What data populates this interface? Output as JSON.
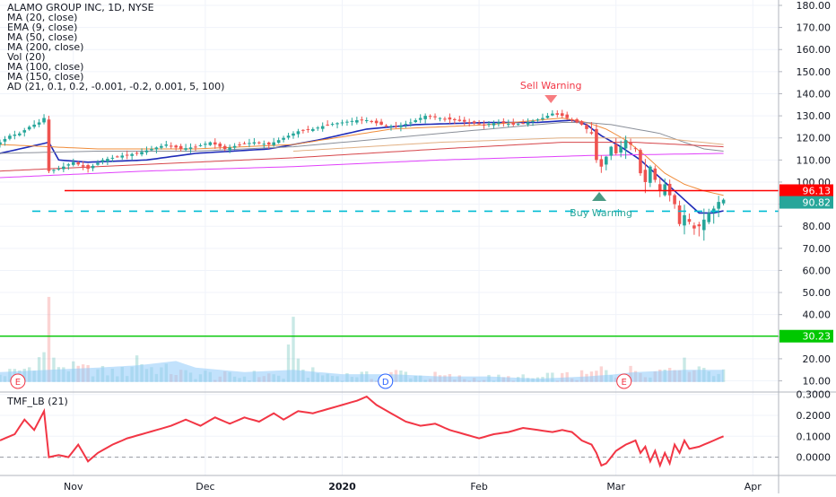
{
  "colors": {
    "up": "#26a69a",
    "down": "#ef5350",
    "ma20": "#1e2bb8",
    "ma50": "#8a8f99",
    "ma100": "#d6454a",
    "ma150": "#e2b083",
    "ma200": "#e040fb",
    "ema9": "#f08c3a",
    "resistance": "#ff0000",
    "support": "#00c800",
    "buy_line": "#00bcd4",
    "volume": "#90caf9",
    "tmf": "#f23645",
    "grid": "#f0f3fa",
    "axis_text": "#131722"
  },
  "legend": {
    "title": "ALAMO GROUP INC, 1D, NYSE",
    "indicators": [
      "MA (20, close)",
      "EMA (9, close)",
      "MA (50, close)",
      "MA (200, close)",
      "Vol (20)",
      "MA (100, close)",
      "MA (150, close)",
      "AD (21, 0.1, 0.2, -0.001, -0.2, 0.001, 5, 100)"
    ]
  },
  "chart_data": [
    {
      "type": "candlestick",
      "title": "ALAMO GROUP INC, 1D, NYSE",
      "x_ticks": [
        "Nov",
        "Dec",
        "2020",
        "Feb",
        "Mar",
        "Apr"
      ],
      "y_ticks": [
        "180.00",
        "170.00",
        "160.00",
        "150.00",
        "140.00",
        "130.00",
        "120.00",
        "110.00",
        "100.00",
        "90.00",
        "80.00",
        "70.00",
        "60.00",
        "50.00",
        "40.00",
        "30.00",
        "20.00",
        "10.00"
      ],
      "ylim": [
        8,
        182
      ],
      "price_labels": [
        {
          "label": "96.13",
          "value": 96.13,
          "color": "#ff0000"
        },
        {
          "label": "90.82",
          "value": 90.82,
          "color": "#26a69a"
        },
        {
          "label": "30.23",
          "value": 30.23,
          "color": "#00c800"
        }
      ],
      "horizontal_lines": [
        {
          "value": 96.13,
          "style": "solid",
          "color": "#ff0000"
        },
        {
          "value": 30.23,
          "style": "solid",
          "color": "#00c800"
        },
        {
          "value": 86.8,
          "style": "dashed",
          "color": "#00bcd4"
        }
      ],
      "annotations": [
        {
          "text": "Sell Warning",
          "near_bar": 116,
          "marker": "down-triangle"
        },
        {
          "text": "Buy Warning",
          "near_bar": 129,
          "marker": "up-triangle"
        }
      ],
      "event_markers": [
        {
          "text": "E",
          "bar": 2
        },
        {
          "text": "D",
          "bar": 75
        },
        {
          "text": "E",
          "bar": 126
        }
      ],
      "close_anchors": [
        [
          0,
          118
        ],
        [
          2,
          121
        ],
        [
          4,
          122
        ],
        [
          6,
          125
        ],
        [
          8,
          127
        ],
        [
          9,
          129
        ],
        [
          10,
          105
        ],
        [
          12,
          106
        ],
        [
          15,
          109
        ],
        [
          18,
          106
        ],
        [
          21,
          110
        ],
        [
          25,
          112
        ],
        [
          28,
          113
        ],
        [
          31,
          115
        ],
        [
          34,
          117
        ],
        [
          37,
          115
        ],
        [
          40,
          116
        ],
        [
          43,
          118
        ],
        [
          46,
          115
        ],
        [
          49,
          117
        ],
        [
          52,
          118
        ],
        [
          55,
          117
        ],
        [
          58,
          120
        ],
        [
          61,
          123
        ],
        [
          64,
          124
        ],
        [
          67,
          126
        ],
        [
          70,
          127
        ],
        [
          73,
          128
        ],
        [
          75,
          128
        ],
        [
          78,
          126
        ],
        [
          81,
          125
        ],
        [
          84,
          127
        ],
        [
          87,
          130
        ],
        [
          90,
          129
        ],
        [
          93,
          128
        ],
        [
          96,
          127
        ],
        [
          99,
          126
        ],
        [
          102,
          127
        ],
        [
          105,
          126
        ],
        [
          108,
          127
        ],
        [
          111,
          129
        ],
        [
          113,
          131
        ],
        [
          115,
          130
        ],
        [
          117,
          128
        ],
        [
          119,
          126
        ],
        [
          121,
          122
        ],
        [
          122,
          110
        ],
        [
          123,
          107
        ],
        [
          125,
          116
        ],
        [
          126,
          113
        ],
        [
          128,
          119
        ],
        [
          130,
          115
        ],
        [
          131,
          104
        ],
        [
          132,
          100
        ],
        [
          133,
          107
        ],
        [
          134,
          101
        ],
        [
          135,
          96
        ],
        [
          136,
          99
        ],
        [
          137,
          94
        ],
        [
          138,
          90
        ],
        [
          139,
          81
        ],
        [
          140,
          85
        ],
        [
          141,
          82
        ],
        [
          142,
          79
        ],
        [
          143,
          80
        ],
        [
          144,
          83
        ],
        [
          145,
          86
        ],
        [
          146,
          88
        ],
        [
          147,
          91
        ],
        [
          148,
          92
        ]
      ],
      "volume_anchors": [
        [
          0,
          13
        ],
        [
          3,
          14
        ],
        [
          6,
          16
        ],
        [
          9,
          22
        ],
        [
          10,
          50
        ],
        [
          11,
          18
        ],
        [
          14,
          16
        ],
        [
          18,
          15
        ],
        [
          22,
          14
        ],
        [
          26,
          14
        ],
        [
          28,
          21
        ],
        [
          30,
          16
        ],
        [
          34,
          15
        ],
        [
          38,
          13
        ],
        [
          42,
          13
        ],
        [
          46,
          12
        ],
        [
          50,
          12
        ],
        [
          54,
          13
        ],
        [
          58,
          12
        ],
        [
          60,
          33
        ],
        [
          62,
          14
        ],
        [
          66,
          13
        ],
        [
          70,
          12
        ],
        [
          73,
          13
        ],
        [
          75,
          12
        ],
        [
          78,
          12
        ],
        [
          82,
          14
        ],
        [
          86,
          12
        ],
        [
          90,
          12
        ],
        [
          94,
          11
        ],
        [
          98,
          11
        ],
        [
          102,
          11
        ],
        [
          106,
          11
        ],
        [
          110,
          11
        ],
        [
          114,
          12
        ],
        [
          118,
          12
        ],
        [
          121,
          13
        ],
        [
          123,
          15
        ],
        [
          126,
          13
        ],
        [
          130,
          15
        ],
        [
          134,
          14
        ],
        [
          138,
          18
        ],
        [
          141,
          17
        ],
        [
          144,
          16
        ],
        [
          148,
          13
        ]
      ],
      "series": [
        {
          "name": "MA (20, close)",
          "anchors": [
            [
              0,
              113
            ],
            [
              10,
              118
            ],
            [
              12,
              110
            ],
            [
              18,
              109
            ],
            [
              30,
              110
            ],
            [
              40,
              113
            ],
            [
              55,
              115
            ],
            [
              65,
              119
            ],
            [
              75,
              124
            ],
            [
              85,
              126
            ],
            [
              100,
              127
            ],
            [
              110,
              127
            ],
            [
              117,
              128
            ],
            [
              120,
              126
            ],
            [
              123,
              121
            ],
            [
              127,
              116
            ],
            [
              131,
              110
            ],
            [
              135,
              102
            ],
            [
              139,
              94
            ],
            [
              143,
              86
            ],
            [
              146,
              86
            ],
            [
              148,
              87
            ]
          ]
        },
        {
          "name": "EMA (9, close)",
          "anchors": [
            [
              0,
              117
            ],
            [
              20,
              115
            ],
            [
              40,
              115
            ],
            [
              60,
              117
            ],
            [
              80,
              124
            ],
            [
              100,
              126
            ],
            [
              115,
              129
            ],
            [
              120,
              127
            ],
            [
              124,
              124
            ],
            [
              128,
              119
            ],
            [
              132,
              112
            ],
            [
              136,
              104
            ],
            [
              140,
              99
            ],
            [
              144,
              96
            ],
            [
              148,
              94
            ]
          ]
        },
        {
          "name": "MA (50, close)",
          "anchors": [
            [
              0,
              113
            ],
            [
              20,
              114
            ],
            [
              40,
              114
            ],
            [
              60,
              116
            ],
            [
              80,
              120
            ],
            [
              100,
              124
            ],
            [
              115,
              127
            ],
            [
              120,
              127
            ],
            [
              125,
              126
            ],
            [
              130,
              124
            ],
            [
              135,
              122
            ],
            [
              140,
              118
            ],
            [
              144,
              115
            ],
            [
              148,
              114
            ]
          ]
        },
        {
          "name": "MA (100, close)",
          "anchors": [
            [
              0,
              105
            ],
            [
              30,
              108
            ],
            [
              60,
              111
            ],
            [
              90,
              115
            ],
            [
              115,
              118
            ],
            [
              130,
              118
            ],
            [
              148,
              116
            ]
          ]
        },
        {
          "name": "MA (150, close)",
          "anchors": [
            [
              60,
              114
            ],
            [
              90,
              118
            ],
            [
              115,
              120
            ],
            [
              135,
              120
            ],
            [
              148,
              117
            ]
          ]
        },
        {
          "name": "MA (200, close)",
          "anchors": [
            [
              0,
              102
            ],
            [
              30,
              105
            ],
            [
              60,
              107
            ],
            [
              90,
              110
            ],
            [
              120,
              112
            ],
            [
              148,
              113
            ]
          ]
        }
      ]
    },
    {
      "type": "line",
      "title": "TMF_LB (21)",
      "y_ticks": [
        "0.3000",
        "0.2000",
        "0.1000",
        "0.0000"
      ],
      "ylim": [
        -0.09,
        0.31
      ],
      "zero_line": 0,
      "series": [
        {
          "name": "TMF_LB (21)",
          "anchors": [
            [
              0,
              0.08
            ],
            [
              3,
              0.11
            ],
            [
              5,
              0.18
            ],
            [
              7,
              0.13
            ],
            [
              9,
              0.22
            ],
            [
              10,
              0.0
            ],
            [
              12,
              0.01
            ],
            [
              14,
              0.0
            ],
            [
              16,
              0.06
            ],
            [
              18,
              -0.02
            ],
            [
              20,
              0.02
            ],
            [
              23,
              0.06
            ],
            [
              26,
              0.09
            ],
            [
              29,
              0.11
            ],
            [
              32,
              0.13
            ],
            [
              35,
              0.15
            ],
            [
              38,
              0.18
            ],
            [
              41,
              0.15
            ],
            [
              44,
              0.19
            ],
            [
              47,
              0.16
            ],
            [
              50,
              0.19
            ],
            [
              53,
              0.17
            ],
            [
              56,
              0.21
            ],
            [
              58,
              0.18
            ],
            [
              61,
              0.22
            ],
            [
              64,
              0.21
            ],
            [
              67,
              0.23
            ],
            [
              70,
              0.25
            ],
            [
              73,
              0.27
            ],
            [
              75,
              0.29
            ],
            [
              77,
              0.25
            ],
            [
              80,
              0.21
            ],
            [
              83,
              0.17
            ],
            [
              86,
              0.15
            ],
            [
              89,
              0.16
            ],
            [
              92,
              0.13
            ],
            [
              95,
              0.11
            ],
            [
              98,
              0.09
            ],
            [
              101,
              0.11
            ],
            [
              104,
              0.12
            ],
            [
              107,
              0.14
            ],
            [
              110,
              0.13
            ],
            [
              113,
              0.12
            ],
            [
              115,
              0.13
            ],
            [
              117,
              0.12
            ],
            [
              119,
              0.08
            ],
            [
              121,
              0.06
            ],
            [
              122,
              0.02
            ],
            [
              123,
              -0.04
            ],
            [
              124,
              -0.03
            ],
            [
              126,
              0.03
            ],
            [
              128,
              0.06
            ],
            [
              130,
              0.08
            ],
            [
              131,
              0.02
            ],
            [
              132,
              0.05
            ],
            [
              133,
              -0.02
            ],
            [
              134,
              0.03
            ],
            [
              135,
              -0.04
            ],
            [
              136,
              0.02
            ],
            [
              137,
              -0.03
            ],
            [
              138,
              0.06
            ],
            [
              139,
              0.02
            ],
            [
              140,
              0.08
            ],
            [
              141,
              0.04
            ],
            [
              143,
              0.05
            ],
            [
              145,
              0.07
            ],
            [
              147,
              0.09
            ],
            [
              148,
              0.1
            ]
          ]
        }
      ]
    }
  ]
}
